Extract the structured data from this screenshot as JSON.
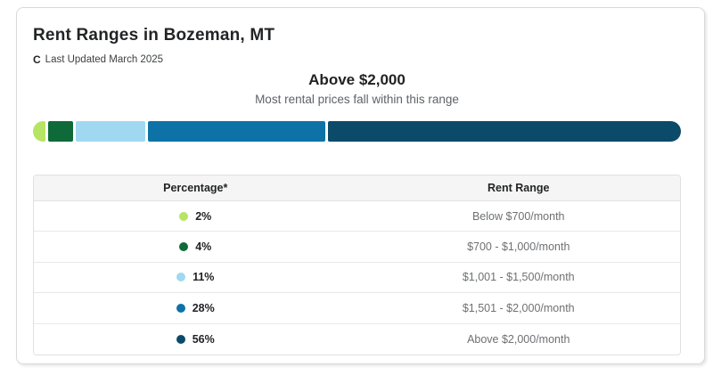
{
  "card": {
    "title": "Rent Ranges in Bozeman, MT",
    "last_updated": {
      "icon_glyph": "C",
      "icon_name": "refresh-icon",
      "text": "Last Updated March 2025"
    },
    "highlight": {
      "title": "Above $2,000",
      "subtitle": "Most rental prices fall within this range"
    }
  },
  "chart_data": {
    "type": "bar",
    "subtype": "horizontal-stacked",
    "title": "Rent Ranges in Bozeman, MT",
    "highlighted_range": "Above $2,000",
    "categories": [
      "Below $700/month",
      "$700 - $1,000/month",
      "$1,001 - $1,500/month",
      "$1,501 - $2,000/month",
      "Above $2,000/month"
    ],
    "values": [
      2,
      4,
      11,
      28,
      56
    ],
    "unit": "%",
    "colors": [
      "#b7e464",
      "#0e6a38",
      "#a0d8f1",
      "#0d73a7",
      "#0b4a68"
    ],
    "legend_position": "table-below",
    "axis": "none"
  },
  "table": {
    "headers": [
      "Percentage*",
      "Rent Range"
    ],
    "rows": [
      {
        "percentage": "2%",
        "range": "Below $700/month",
        "color": "#b7e464"
      },
      {
        "percentage": "4%",
        "range": "$700 - $1,000/month",
        "color": "#0e6a38"
      },
      {
        "percentage": "11%",
        "range": "$1,001 - $1,500/month",
        "color": "#a0d8f1"
      },
      {
        "percentage": "28%",
        "range": "$1,501 - $2,000/month",
        "color": "#0d73a7"
      },
      {
        "percentage": "56%",
        "range": "Above $2,000/month",
        "color": "#0b4a68"
      }
    ]
  },
  "colors": {
    "card_border": "#d9d9d9",
    "header_bg": "#f5f5f5",
    "row_border": "#e8e8e8",
    "title_text": "#222426",
    "subtitle_text": "#5f6368",
    "range_text": "#6e7073"
  }
}
